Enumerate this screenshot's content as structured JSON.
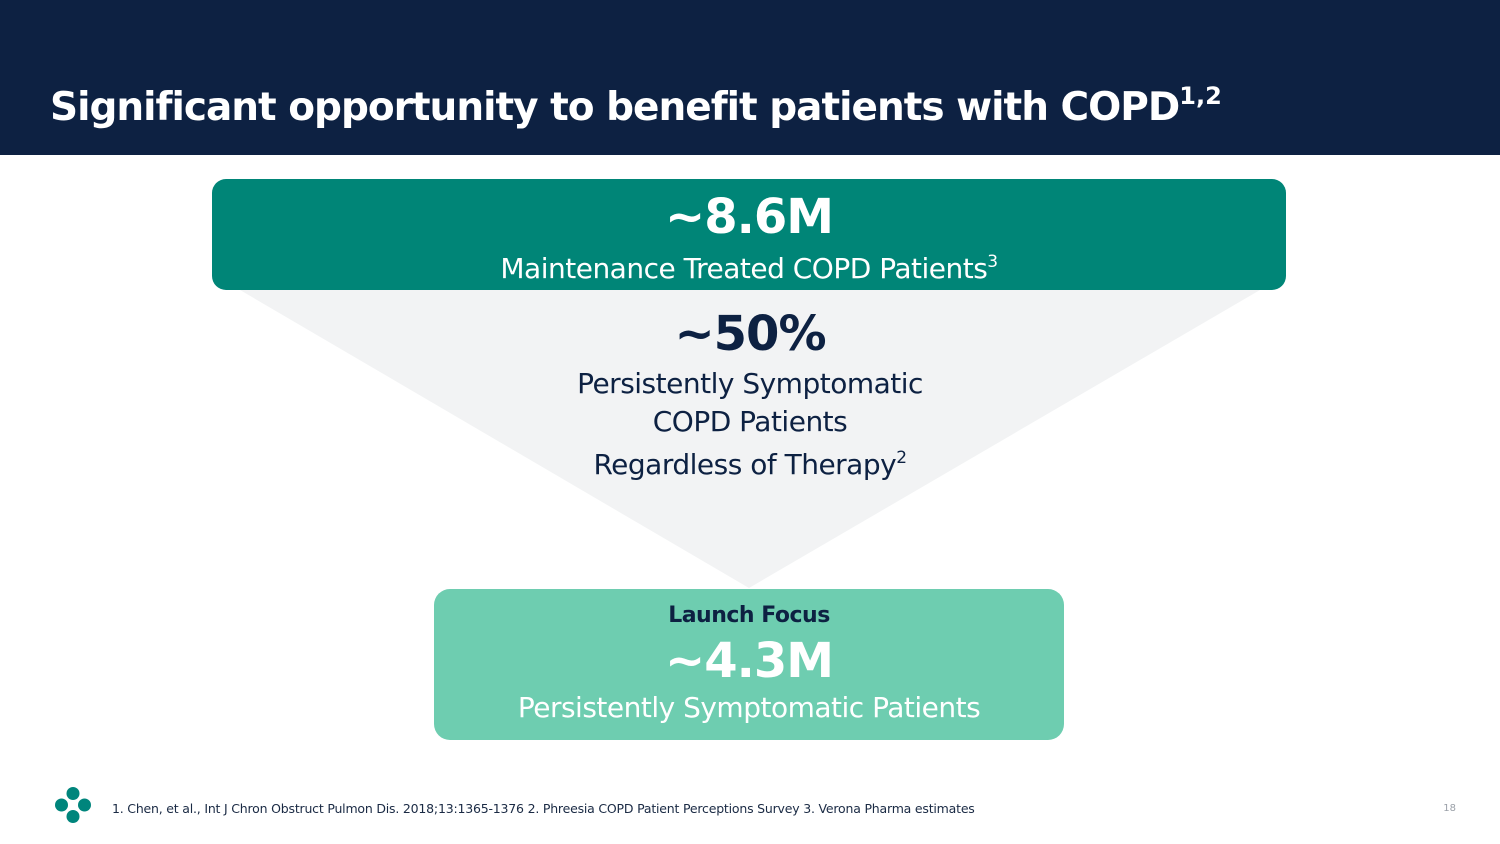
{
  "header": {
    "title": "Significant opportunity to benefit patients with COPD",
    "title_sup": "1,2"
  },
  "funnel": {
    "top": {
      "value": "~8.6M",
      "label": "Maintenance Treated COPD Patients",
      "label_sup": "3"
    },
    "middle": {
      "value": "~50%",
      "line1": "Persistently Symptomatic",
      "line2": "COPD Patients",
      "line3": "Regardless of Therapy",
      "line3_sup": "2"
    },
    "bottom": {
      "heading": "Launch Focus",
      "value": "~4.3M",
      "label": "Persistently Symptomatic Patients"
    }
  },
  "footer": {
    "footnotes": "1. Chen, et al., Int J Chron Obstruct Pulmon Dis. 2018;13:1365-1376  2. Phreesia COPD Patient Perceptions Survey 3. Verona Pharma estimates",
    "page_number": "18",
    "logo_icon": "merck-logo-icon"
  },
  "colors": {
    "header_bg": "#0d2142",
    "top_box": "#008577",
    "bottom_box": "#6ecdb0",
    "funnel_fill": "#f2f3f4",
    "text_dark": "#0d2142"
  }
}
